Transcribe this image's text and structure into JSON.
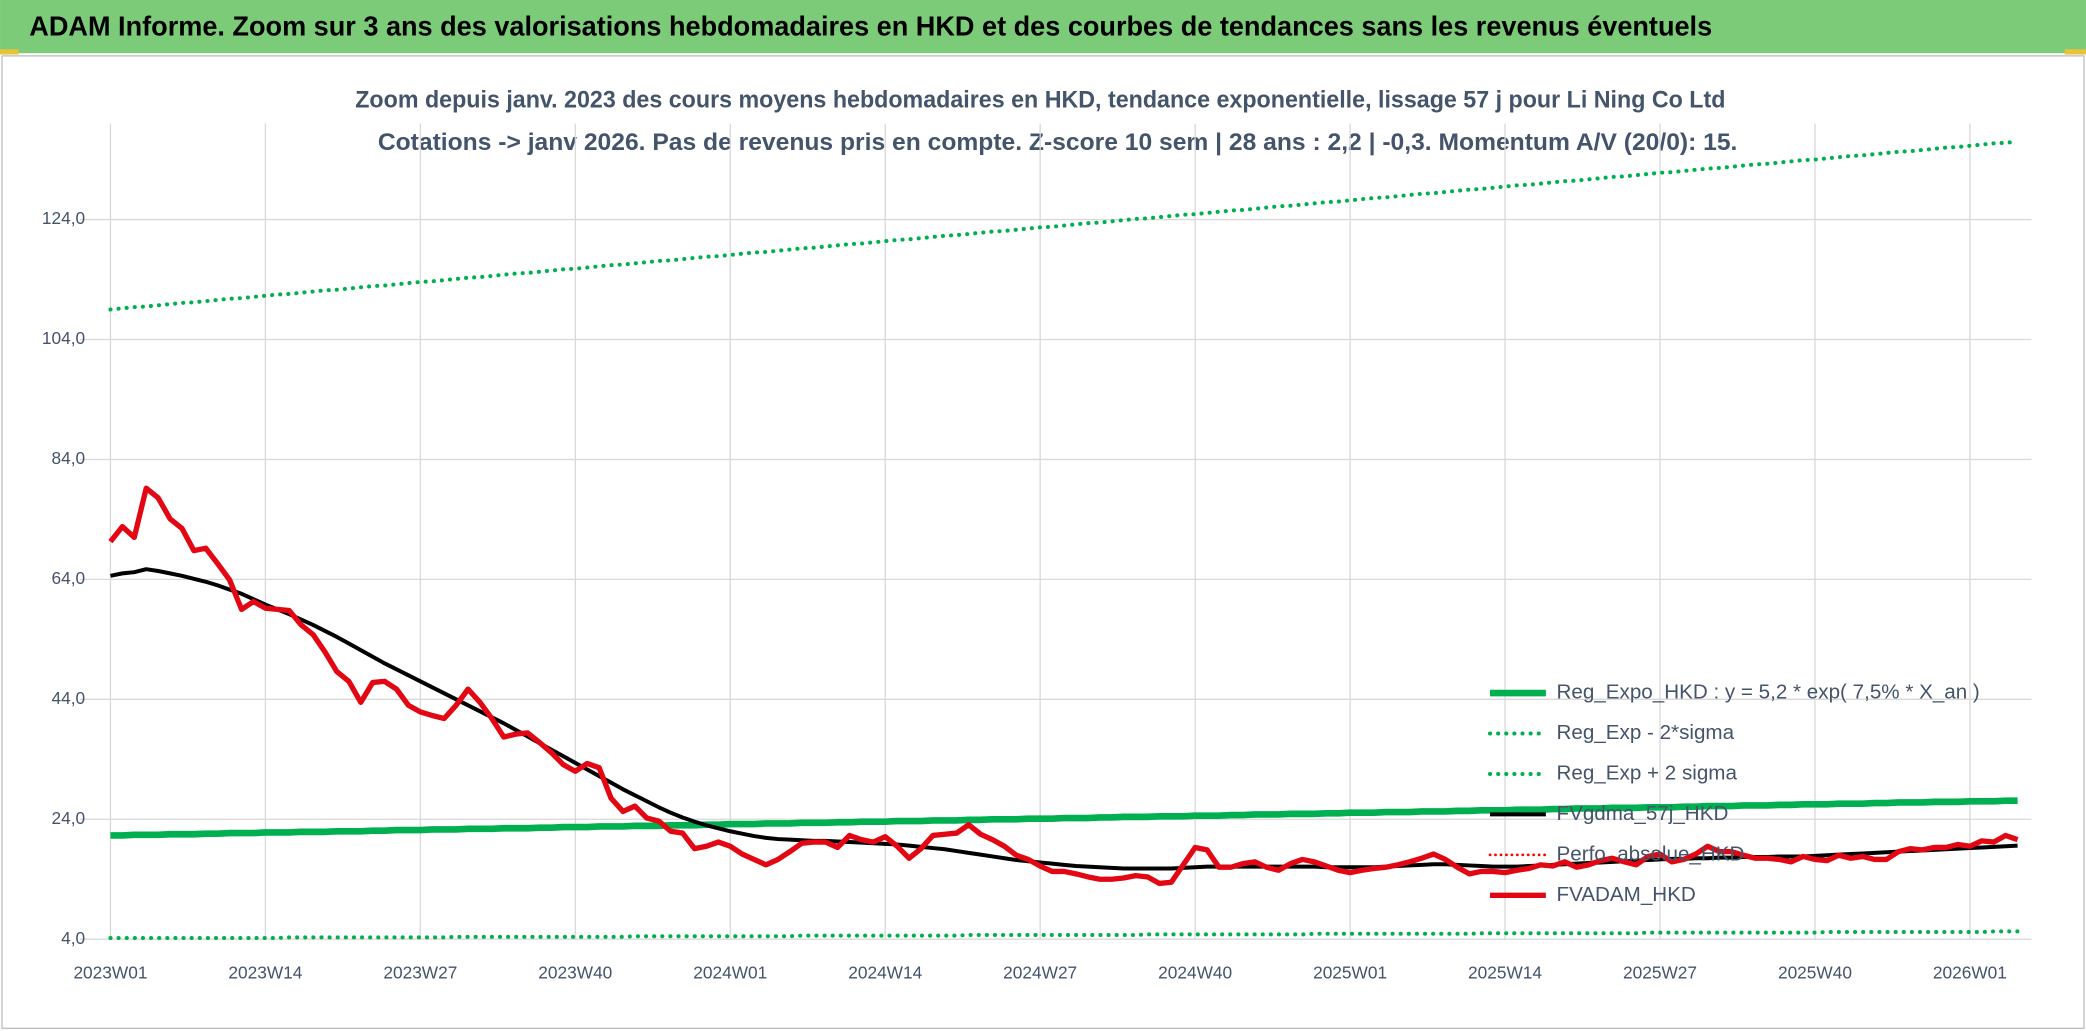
{
  "header": {
    "title": "ADAM Informe. Zoom sur 3 ans des valorisations hebdomadaires en HKD et des courbes de tendances sans les revenus éventuels"
  },
  "chart_data": {
    "type": "line",
    "title": "Zoom depuis janv. 2023 des cours moyens hebdomadaires en HKD, tendance exponentielle, lissage 57 j pour Li Ning Co Ltd",
    "subtitle": "Cotations -> janv 2026. Pas de revenus pris en compte. Z-score 10 sem | 28 ans : 2,2 | -0,3. Momentum A/V (20/0): 15.",
    "categories": [
      "2023W01",
      null,
      null,
      null,
      null,
      null,
      null,
      null,
      null,
      null,
      null,
      null,
      null,
      "2023W14",
      null,
      null,
      null,
      null,
      null,
      null,
      null,
      null,
      null,
      null,
      null,
      null,
      "2023W27",
      null,
      null,
      null,
      null,
      null,
      null,
      null,
      null,
      null,
      null,
      null,
      null,
      "2023W40",
      null,
      null,
      null,
      null,
      null,
      null,
      null,
      null,
      null,
      null,
      null,
      null,
      "2024W01",
      null,
      null,
      null,
      null,
      null,
      null,
      null,
      null,
      null,
      null,
      null,
      null,
      "2024W14",
      null,
      null,
      null,
      null,
      null,
      null,
      null,
      null,
      null,
      null,
      null,
      null,
      "2024W27",
      null,
      null,
      null,
      null,
      null,
      null,
      null,
      null,
      null,
      null,
      null,
      null,
      "2024W40",
      null,
      null,
      null,
      null,
      null,
      null,
      null,
      null,
      null,
      null,
      null,
      null,
      "2025W01",
      null,
      null,
      null,
      null,
      null,
      null,
      null,
      null,
      null,
      null,
      null,
      null,
      "2025W14",
      null,
      null,
      null,
      null,
      null,
      null,
      null,
      null,
      null,
      null,
      null,
      null,
      "2025W27",
      null,
      null,
      null,
      null,
      null,
      null,
      null,
      null,
      null,
      null,
      null,
      null,
      "2025W40",
      null,
      null,
      null,
      null,
      null,
      null,
      null,
      null,
      null,
      null,
      null,
      null,
      "2026W01",
      null,
      null,
      null,
      null
    ],
    "ylim": [
      4,
      140
    ],
    "yticks": [
      {
        "value": 4,
        "label": "4,0"
      },
      {
        "value": 24,
        "label": "24,0"
      },
      {
        "value": 44,
        "label": "44,0"
      },
      {
        "value": 64,
        "label": "64,0"
      },
      {
        "value": 84,
        "label": "84,0"
      },
      {
        "value": 104,
        "label": "104,0"
      },
      {
        "value": 124,
        "label": "124,0"
      }
    ],
    "grid": true,
    "legend": "bottom-right",
    "series": [
      {
        "name": "Reg_Expo_HKD : y = 5,2 * exp( 7,5% *  X_an )",
        "color": "#00b050",
        "line_style": "solid",
        "values": [
          21.3,
          21.3,
          21.4,
          21.4,
          21.4,
          21.5,
          21.5,
          21.5,
          21.6,
          21.6,
          21.7,
          21.7,
          21.7,
          21.8,
          21.8,
          21.8,
          21.9,
          21.9,
          21.9,
          22.0,
          22.0,
          22.0,
          22.1,
          22.1,
          22.2,
          22.2,
          22.2,
          22.3,
          22.3,
          22.3,
          22.4,
          22.4,
          22.4,
          22.5,
          22.5,
          22.5,
          22.6,
          22.6,
          22.7,
          22.7,
          22.7,
          22.8,
          22.8,
          22.8,
          22.9,
          22.9,
          22.9,
          23.0,
          23.0,
          23.0,
          23.1,
          23.1,
          23.2,
          23.2,
          23.2,
          23.3,
          23.3,
          23.3,
          23.4,
          23.4,
          23.4,
          23.5,
          23.5,
          23.6,
          23.6,
          23.6,
          23.7,
          23.7,
          23.7,
          23.8,
          23.8,
          23.8,
          23.9,
          23.9,
          24.0,
          24.0,
          24.0,
          24.1,
          24.1,
          24.1,
          24.2,
          24.2,
          24.2,
          24.3,
          24.3,
          24.4,
          24.4,
          24.4,
          24.5,
          24.5,
          24.5,
          24.6,
          24.6,
          24.6,
          24.7,
          24.7,
          24.8,
          24.8,
          24.8,
          24.9,
          24.9,
          24.9,
          25.0,
          25.0,
          25.1,
          25.1,
          25.1,
          25.2,
          25.2,
          25.2,
          25.3,
          25.3,
          25.3,
          25.4,
          25.4,
          25.5,
          25.5,
          25.5,
          25.6,
          25.6,
          25.6,
          25.7,
          25.7,
          25.8,
          25.8,
          25.8,
          25.9,
          25.9,
          25.9,
          26.0,
          26.0,
          26.0,
          26.1,
          26.1,
          26.2,
          26.2,
          26.2,
          26.3,
          26.3,
          26.3,
          26.4,
          26.4,
          26.5,
          26.5,
          26.5,
          26.6,
          26.6,
          26.6,
          26.7,
          26.7,
          26.8,
          26.8,
          26.8,
          26.9,
          26.9,
          26.9,
          27.0,
          27.0,
          27.0,
          27.1,
          27.1
        ]
      },
      {
        "name": "Reg_Exp - 2*sigma",
        "color": "#00b050",
        "line_style": "dotted",
        "values": [
          4.2,
          4.2,
          4.2,
          4.2,
          4.2,
          4.2,
          4.2,
          4.2,
          4.2,
          4.2,
          4.2,
          4.2,
          4.2,
          4.2,
          4.2,
          4.3,
          4.3,
          4.3,
          4.3,
          4.3,
          4.3,
          4.3,
          4.3,
          4.3,
          4.3,
          4.3,
          4.3,
          4.3,
          4.3,
          4.4,
          4.4,
          4.4,
          4.4,
          4.4,
          4.4,
          4.4,
          4.4,
          4.4,
          4.4,
          4.4,
          4.4,
          4.4,
          4.4,
          4.4,
          4.5,
          4.5,
          4.5,
          4.5,
          4.5,
          4.5,
          4.5,
          4.5,
          4.5,
          4.5,
          4.5,
          4.5,
          4.5,
          4.5,
          4.6,
          4.6,
          4.6,
          4.6,
          4.6,
          4.6,
          4.6,
          4.6,
          4.6,
          4.6,
          4.6,
          4.6,
          4.6,
          4.6,
          4.7,
          4.7,
          4.7,
          4.7,
          4.7,
          4.7,
          4.7,
          4.7,
          4.7,
          4.7,
          4.7,
          4.7,
          4.7,
          4.7,
          4.7,
          4.8,
          4.8,
          4.8,
          4.8,
          4.8,
          4.8,
          4.8,
          4.8,
          4.8,
          4.8,
          4.8,
          4.8,
          4.8,
          4.8,
          4.9,
          4.9,
          4.9,
          4.9,
          4.9,
          4.9,
          4.9,
          4.9,
          4.9,
          4.9,
          4.9,
          4.9,
          4.9,
          4.9,
          5.0,
          5.0,
          5.0,
          5.0,
          5.0,
          5.0,
          5.0,
          5.0,
          5.0,
          5.0,
          5.0,
          5.0,
          5.0,
          5.0,
          5.1,
          5.1,
          5.1,
          5.1,
          5.1,
          5.1,
          5.1,
          5.1,
          5.1,
          5.1,
          5.1,
          5.1,
          5.1,
          5.1,
          5.1,
          5.2,
          5.2,
          5.2,
          5.2,
          5.2,
          5.2,
          5.2,
          5.2,
          5.2,
          5.2,
          5.2,
          5.2,
          5.2,
          5.2,
          5.3,
          5.3,
          5.3
        ]
      },
      {
        "name": "Reg_Exp + 2 sigma",
        "color": "#00b050",
        "line_style": "dotted",
        "values": [
          109.0,
          109.2,
          109.4,
          109.5,
          109.7,
          109.9,
          110.1,
          110.2,
          110.4,
          110.6,
          110.8,
          110.9,
          111.1,
          111.3,
          111.5,
          111.6,
          111.8,
          112.0,
          112.2,
          112.3,
          112.5,
          112.7,
          112.9,
          113.0,
          113.2,
          113.4,
          113.6,
          113.7,
          113.9,
          114.1,
          114.3,
          114.4,
          114.6,
          114.8,
          115.0,
          115.1,
          115.3,
          115.5,
          115.7,
          115.8,
          116.0,
          116.2,
          116.4,
          116.5,
          116.7,
          116.9,
          117.1,
          117.2,
          117.4,
          117.6,
          117.8,
          117.9,
          118.1,
          118.3,
          118.5,
          118.6,
          118.8,
          119.0,
          119.2,
          119.3,
          119.5,
          119.7,
          119.9,
          120.0,
          120.2,
          120.4,
          120.6,
          120.7,
          120.9,
          121.1,
          121.3,
          121.4,
          121.6,
          121.8,
          122.0,
          122.1,
          122.3,
          122.5,
          122.7,
          122.8,
          123.0,
          123.2,
          123.4,
          123.5,
          123.7,
          123.9,
          124.1,
          124.2,
          124.4,
          124.6,
          124.8,
          124.9,
          125.1,
          125.3,
          125.5,
          125.6,
          125.8,
          126.0,
          126.2,
          126.3,
          126.5,
          126.7,
          126.9,
          127.0,
          127.2,
          127.4,
          127.6,
          127.7,
          127.9,
          128.1,
          128.3,
          128.4,
          128.6,
          128.8,
          129.0,
          129.1,
          129.3,
          129.5,
          129.7,
          129.8,
          130.0,
          130.2,
          130.4,
          130.5,
          130.7,
          130.9,
          131.1,
          131.2,
          131.4,
          131.6,
          131.8,
          131.9,
          132.1,
          132.3,
          132.5,
          132.6,
          132.8,
          133.0,
          133.2,
          133.3,
          133.5,
          133.7,
          133.9,
          134.0,
          134.2,
          134.4,
          134.6,
          134.7,
          134.9,
          135.1,
          135.3,
          135.4,
          135.6,
          135.8,
          136.0,
          136.1,
          136.3,
          136.5,
          136.7,
          136.8,
          137.0
        ]
      },
      {
        "name": "FVgdma_57j_HKD",
        "color": "#000000",
        "line_style": "solid",
        "values": [
          64.6,
          65.0,
          65.2,
          65.7,
          65.4,
          65.0,
          64.6,
          64.1,
          63.6,
          63.0,
          62.3,
          61.6,
          60.7,
          59.8,
          59.0,
          58.2,
          57.3,
          56.4,
          55.4,
          54.4,
          53.3,
          52.2,
          51.1,
          50.0,
          49.0,
          48.0,
          47.0,
          46.0,
          45.0,
          44.0,
          43.0,
          42.0,
          41.0,
          40.0,
          38.9,
          37.8,
          36.7,
          35.6,
          34.5,
          33.4,
          32.3,
          31.2,
          30.1,
          29.0,
          28.0,
          27.0,
          26.0,
          25.1,
          24.3,
          23.6,
          23.0,
          22.5,
          22.0,
          21.6,
          21.2,
          20.9,
          20.7,
          20.6,
          20.5,
          20.4,
          20.4,
          20.3,
          20.2,
          20.1,
          20.0,
          19.9,
          19.8,
          19.6,
          19.4,
          19.2,
          19.0,
          18.7,
          18.4,
          18.1,
          17.8,
          17.5,
          17.2,
          17.0,
          16.8,
          16.6,
          16.4,
          16.2,
          16.1,
          16.0,
          15.9,
          15.8,
          15.8,
          15.8,
          15.8,
          15.8,
          15.9,
          16.0,
          16.1,
          16.1,
          16.1,
          16.1,
          16.1,
          16.1,
          16.1,
          16.1,
          16.1,
          16.1,
          16.0,
          16.0,
          16.0,
          16.0,
          16.0,
          16.1,
          16.2,
          16.3,
          16.4,
          16.5,
          16.5,
          16.4,
          16.3,
          16.2,
          16.1,
          16.1,
          16.1,
          16.2,
          16.3,
          16.4,
          16.5,
          16.6,
          16.7,
          16.8,
          16.9,
          17.0,
          17.1,
          17.2,
          17.3,
          17.4,
          17.4,
          17.5,
          17.5,
          17.6,
          17.6,
          17.7,
          17.7,
          17.7,
          17.8,
          17.8,
          17.8,
          17.9,
          18.0,
          18.1,
          18.2,
          18.3,
          18.4,
          18.5,
          18.6,
          18.7,
          18.8,
          18.9,
          19.0,
          19.1,
          19.2,
          19.3,
          19.4,
          19.5,
          19.6
        ]
      },
      {
        "name": "Perfo. absolue_HKD",
        "color": "#ff0000",
        "line_style": "dotted"
      },
      {
        "name": "FVADAM_HKD",
        "color": "#e30613",
        "line_style": "solid",
        "values": [
          70.3,
          72.8,
          71.0,
          79.2,
          77.6,
          74.1,
          72.5,
          68.8,
          69.2,
          66.6,
          63.9,
          59.0,
          60.3,
          59.2,
          59.0,
          58.8,
          56.4,
          54.8,
          51.9,
          48.6,
          47.0,
          43.5,
          46.8,
          47.0,
          45.7,
          43.0,
          41.9,
          41.3,
          40.8,
          43.0,
          45.7,
          43.5,
          40.8,
          37.7,
          38.2,
          38.4,
          36.8,
          35.1,
          33.1,
          32.0,
          33.3,
          32.6,
          27.5,
          25.3,
          26.2,
          24.2,
          23.7,
          22.0,
          21.7,
          19.1,
          19.5,
          20.2,
          19.5,
          18.2,
          17.3,
          16.4,
          17.3,
          18.6,
          20.0,
          20.2,
          20.2,
          19.3,
          21.3,
          20.6,
          20.2,
          21.1,
          19.5,
          17.5,
          19.1,
          21.3,
          21.5,
          21.7,
          23.1,
          21.5,
          20.6,
          19.5,
          18.0,
          17.3,
          16.2,
          15.3,
          15.3,
          14.9,
          14.4,
          14.0,
          14.0,
          14.2,
          14.6,
          14.4,
          13.3,
          13.5,
          16.4,
          19.3,
          18.9,
          16.0,
          16.0,
          16.6,
          16.9,
          16.0,
          15.5,
          16.6,
          17.3,
          16.9,
          16.2,
          15.5,
          15.1,
          15.5,
          15.8,
          16.0,
          16.4,
          16.9,
          17.5,
          18.2,
          17.3,
          16.0,
          14.9,
          15.3,
          15.3,
          15.1,
          15.5,
          15.8,
          16.4,
          16.2,
          16.9,
          16.0,
          16.4,
          17.1,
          17.5,
          16.9,
          16.4,
          17.8,
          18.2,
          16.9,
          17.3,
          18.2,
          19.5,
          18.6,
          18.6,
          18.0,
          17.5,
          17.5,
          17.3,
          16.9,
          17.8,
          17.3,
          17.1,
          18.0,
          17.5,
          17.8,
          17.3,
          17.3,
          18.6,
          19.1,
          18.9,
          19.3,
          19.3,
          19.8,
          19.5,
          20.4,
          20.2,
          21.3,
          20.6
        ]
      }
    ]
  }
}
